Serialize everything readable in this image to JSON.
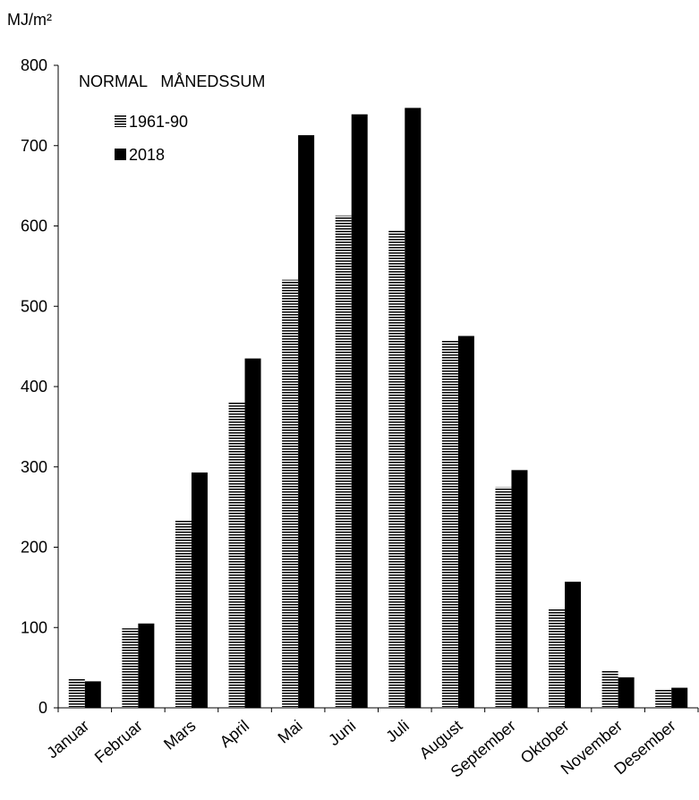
{
  "chart_data": {
    "type": "bar",
    "title": "NORMAL   MÅNEDSSUM",
    "ylabel": "MJ/m²",
    "xlabel": "",
    "ylim": [
      0,
      800
    ],
    "yticks": [
      0,
      100,
      200,
      300,
      400,
      500,
      600,
      700,
      800
    ],
    "grid": false,
    "legend_position": "top-left",
    "categories": [
      "Januar",
      "Februar",
      "Mars",
      "April",
      "Mai",
      "Juni",
      "Juli",
      "August",
      "September",
      "Oktober",
      "November",
      "Desember"
    ],
    "series": [
      {
        "name": "1961-90",
        "pattern": "horizontal-stripes",
        "color": "#000000",
        "values": [
          36,
          99,
          234,
          380,
          533,
          613,
          594,
          457,
          275,
          123,
          46,
          24
        ]
      },
      {
        "name": "2018",
        "pattern": "solid",
        "color": "#000000",
        "values": [
          33,
          105,
          293,
          435,
          713,
          739,
          747,
          463,
          296,
          157,
          38,
          25
        ]
      }
    ]
  }
}
